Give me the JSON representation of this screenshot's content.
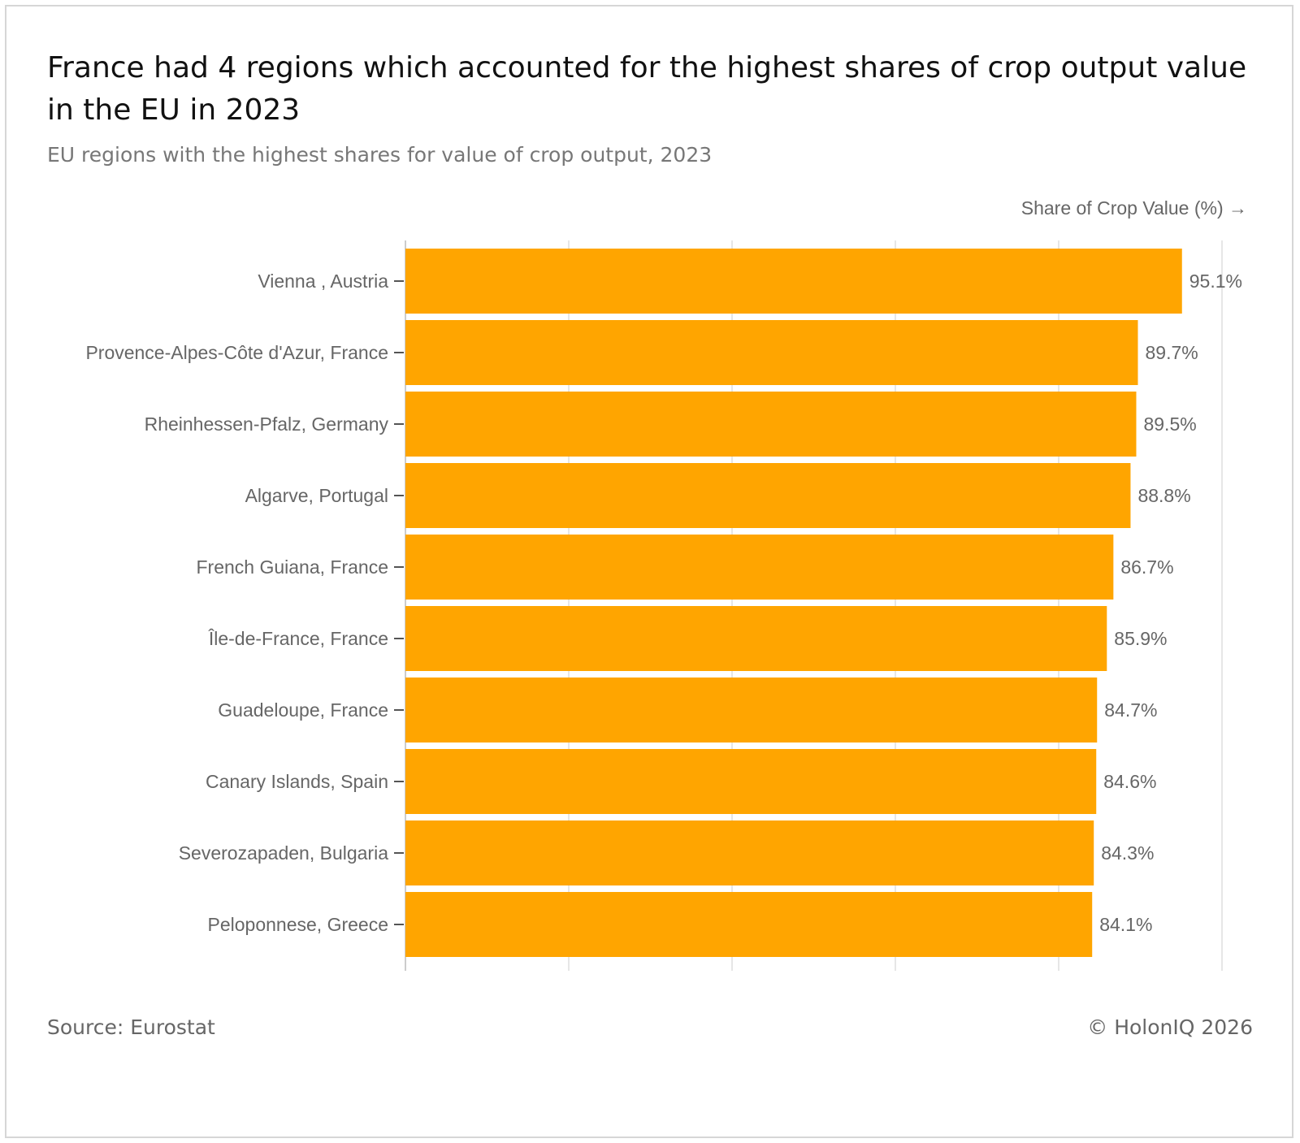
{
  "title": "France had 4 regions which accounted for the highest shares of crop output value in the EU in 2023",
  "subtitle": "EU regions with the highest shares for value of crop output, 2023",
  "footer": {
    "source": "Source: Eurostat",
    "copyright": "© HolonIQ 2026"
  },
  "colors": {
    "bar": "#FFA500",
    "grid": "#e6e6e6",
    "text": "#666666"
  },
  "chart_data": {
    "type": "bar",
    "orientation": "horizontal",
    "title": "France had 4 regions which accounted for the highest shares of crop output value in the EU in 2023",
    "subtitle": "EU regions with the highest shares for value of crop output, 2023",
    "xlabel": "Share of Crop Value (%) →",
    "ylabel": "",
    "xlim": [
      0,
      100
    ],
    "grid": true,
    "categories": [
      "Vienna , Austria",
      "Provence-Alpes-Côte d'Azur, France",
      "Rheinhessen-Pfalz, Germany",
      "Algarve, Portugal",
      "French Guiana, France",
      "Île-de-France, France",
      "Guadeloupe, France",
      "Canary Islands, Spain",
      "Severozapaden, Bulgaria",
      "Peloponnese, Greece"
    ],
    "values": [
      95.1,
      89.7,
      89.5,
      88.8,
      86.7,
      85.9,
      84.7,
      84.6,
      84.3,
      84.1
    ],
    "value_labels": [
      "95.1%",
      "89.7%",
      "89.5%",
      "88.8%",
      "86.7%",
      "85.9%",
      "84.7%",
      "84.6%",
      "84.3%",
      "84.1%"
    ]
  }
}
